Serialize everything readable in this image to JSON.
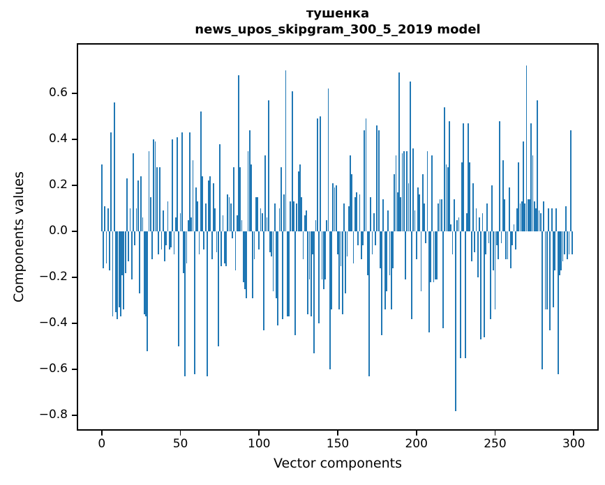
{
  "title": {
    "line1": "тушенка",
    "line2": "news_upos_skipgram_300_5_2019 model"
  },
  "chart_data": {
    "type": "bar",
    "title": "тушенка — news_upos_skipgram_300_5_2019 model",
    "xlabel": "Vector components",
    "ylabel": "Components values",
    "bar_color": "#1f77b4",
    "x_ticks": [
      0,
      50,
      100,
      150,
      200,
      250,
      300
    ],
    "y_ticks": [
      0.6,
      0.4,
      0.2,
      0.0,
      -0.2,
      -0.4,
      -0.6,
      -0.8
    ],
    "xlim": [
      -15,
      315
    ],
    "ylim": [
      -0.86,
      0.812
    ],
    "grid": false,
    "legend": "none",
    "n_components": 300,
    "values": [
      0.29,
      -0.16,
      0.11,
      -0.14,
      0.1,
      -0.17,
      0.43,
      -0.37,
      0.56,
      -0.35,
      -0.38,
      -0.33,
      -0.37,
      -0.19,
      -0.34,
      -0.18,
      0.23,
      -0.13,
      0.1,
      -0.21,
      0.34,
      -0.06,
      0.1,
      0.22,
      -0.27,
      0.24,
      0.06,
      -0.36,
      -0.37,
      -0.52,
      0.35,
      0.15,
      -0.12,
      0.4,
      0.39,
      0.28,
      -0.1,
      0.28,
      -0.08,
      0.09,
      -0.13,
      -0.06,
      0.13,
      -0.08,
      -0.07,
      0.4,
      -0.1,
      0.06,
      0.41,
      -0.5,
      0.08,
      0.43,
      -0.18,
      -0.63,
      -0.14,
      0.05,
      0.43,
      0.06,
      0.31,
      -0.62,
      0.19,
      0.13,
      -0.1,
      0.52,
      0.24,
      -0.08,
      0.12,
      -0.63,
      0.22,
      0.24,
      -0.12,
      0.21,
      0.1,
      -0.09,
      -0.5,
      0.38,
      -0.15,
      0.07,
      -0.14,
      -0.15,
      0.16,
      0.15,
      0.12,
      -0.03,
      0.28,
      -0.17,
      0.07,
      0.68,
      0.28,
      0.05,
      -0.22,
      -0.25,
      -0.29,
      0.35,
      0.44,
      0.29,
      -0.29,
      -0.12,
      0.15,
      0.15,
      -0.08,
      0.1,
      0.08,
      -0.43,
      0.33,
      0.06,
      0.57,
      -0.09,
      -0.11,
      -0.26,
      0.12,
      -0.29,
      -0.41,
      0.1,
      0.28,
      -0.38,
      0.16,
      0.7,
      -0.37,
      -0.37,
      0.13,
      0.61,
      0.13,
      -0.45,
      0.12,
      0.26,
      0.29,
      0.15,
      -0.12,
      0.07,
      0.09,
      -0.36,
      -0.21,
      -0.37,
      -0.1,
      -0.53,
      0.05,
      0.49,
      -0.4,
      0.5,
      -0.21,
      -0.25,
      -0.21,
      0.05,
      0.62,
      -0.6,
      -0.34,
      0.21,
      0.19,
      0.2,
      -0.1,
      -0.34,
      -0.15,
      -0.36,
      0.12,
      -0.27,
      -0.11,
      0.11,
      0.33,
      0.25,
      -0.14,
      0.15,
      0.17,
      -0.06,
      0.16,
      -0.12,
      -0.06,
      0.44,
      0.49,
      -0.19,
      -0.63,
      0.15,
      -0.1,
      0.08,
      -0.06,
      0.46,
      0.44,
      -0.16,
      -0.45,
      0.14,
      -0.34,
      -0.26,
      0.09,
      -0.19,
      -0.34,
      -0.16,
      0.25,
      0.33,
      0.17,
      0.69,
      0.15,
      0.34,
      0.35,
      -0.21,
      0.35,
      0.21,
      0.65,
      -0.38,
      0.36,
      0.09,
      -0.12,
      0.19,
      0.16,
      -0.26,
      0.25,
      0.12,
      -0.05,
      0.35,
      -0.44,
      -0.22,
      0.33,
      -0.22,
      -0.21,
      -0.21,
      0.12,
      0.14,
      0.14,
      -0.42,
      0.54,
      0.29,
      0.28,
      0.48,
      0.03,
      -0.1,
      0.14,
      -0.78,
      0.05,
      0.06,
      -0.55,
      0.3,
      0.47,
      -0.55,
      0.08,
      0.47,
      0.3,
      -0.13,
      0.21,
      -0.09,
      0.1,
      -0.2,
      0.06,
      -0.47,
      0.08,
      -0.46,
      -0.1,
      0.12,
      -0.05,
      -0.38,
      0.2,
      -0.17,
      -0.34,
      -0.06,
      -0.12,
      0.48,
      -0.05,
      0.31,
      0.14,
      -0.12,
      -0.12,
      0.19,
      -0.16,
      -0.06,
      0.03,
      -0.08,
      0.1,
      0.3,
      0.12,
      0.13,
      0.39,
      0.12,
      0.72,
      0.14,
      0.14,
      0.47,
      0.33,
      0.13,
      0.1,
      0.57,
      0.09,
      0.08,
      -0.6,
      0.13,
      -0.34,
      -0.34,
      0.1,
      -0.43,
      0.1,
      -0.33,
      -0.17,
      0.1,
      -0.62,
      -0.19,
      -0.17,
      -0.13,
      -0.1,
      0.11,
      -0.12,
      -0.1,
      0.44,
      -0.1
    ]
  }
}
